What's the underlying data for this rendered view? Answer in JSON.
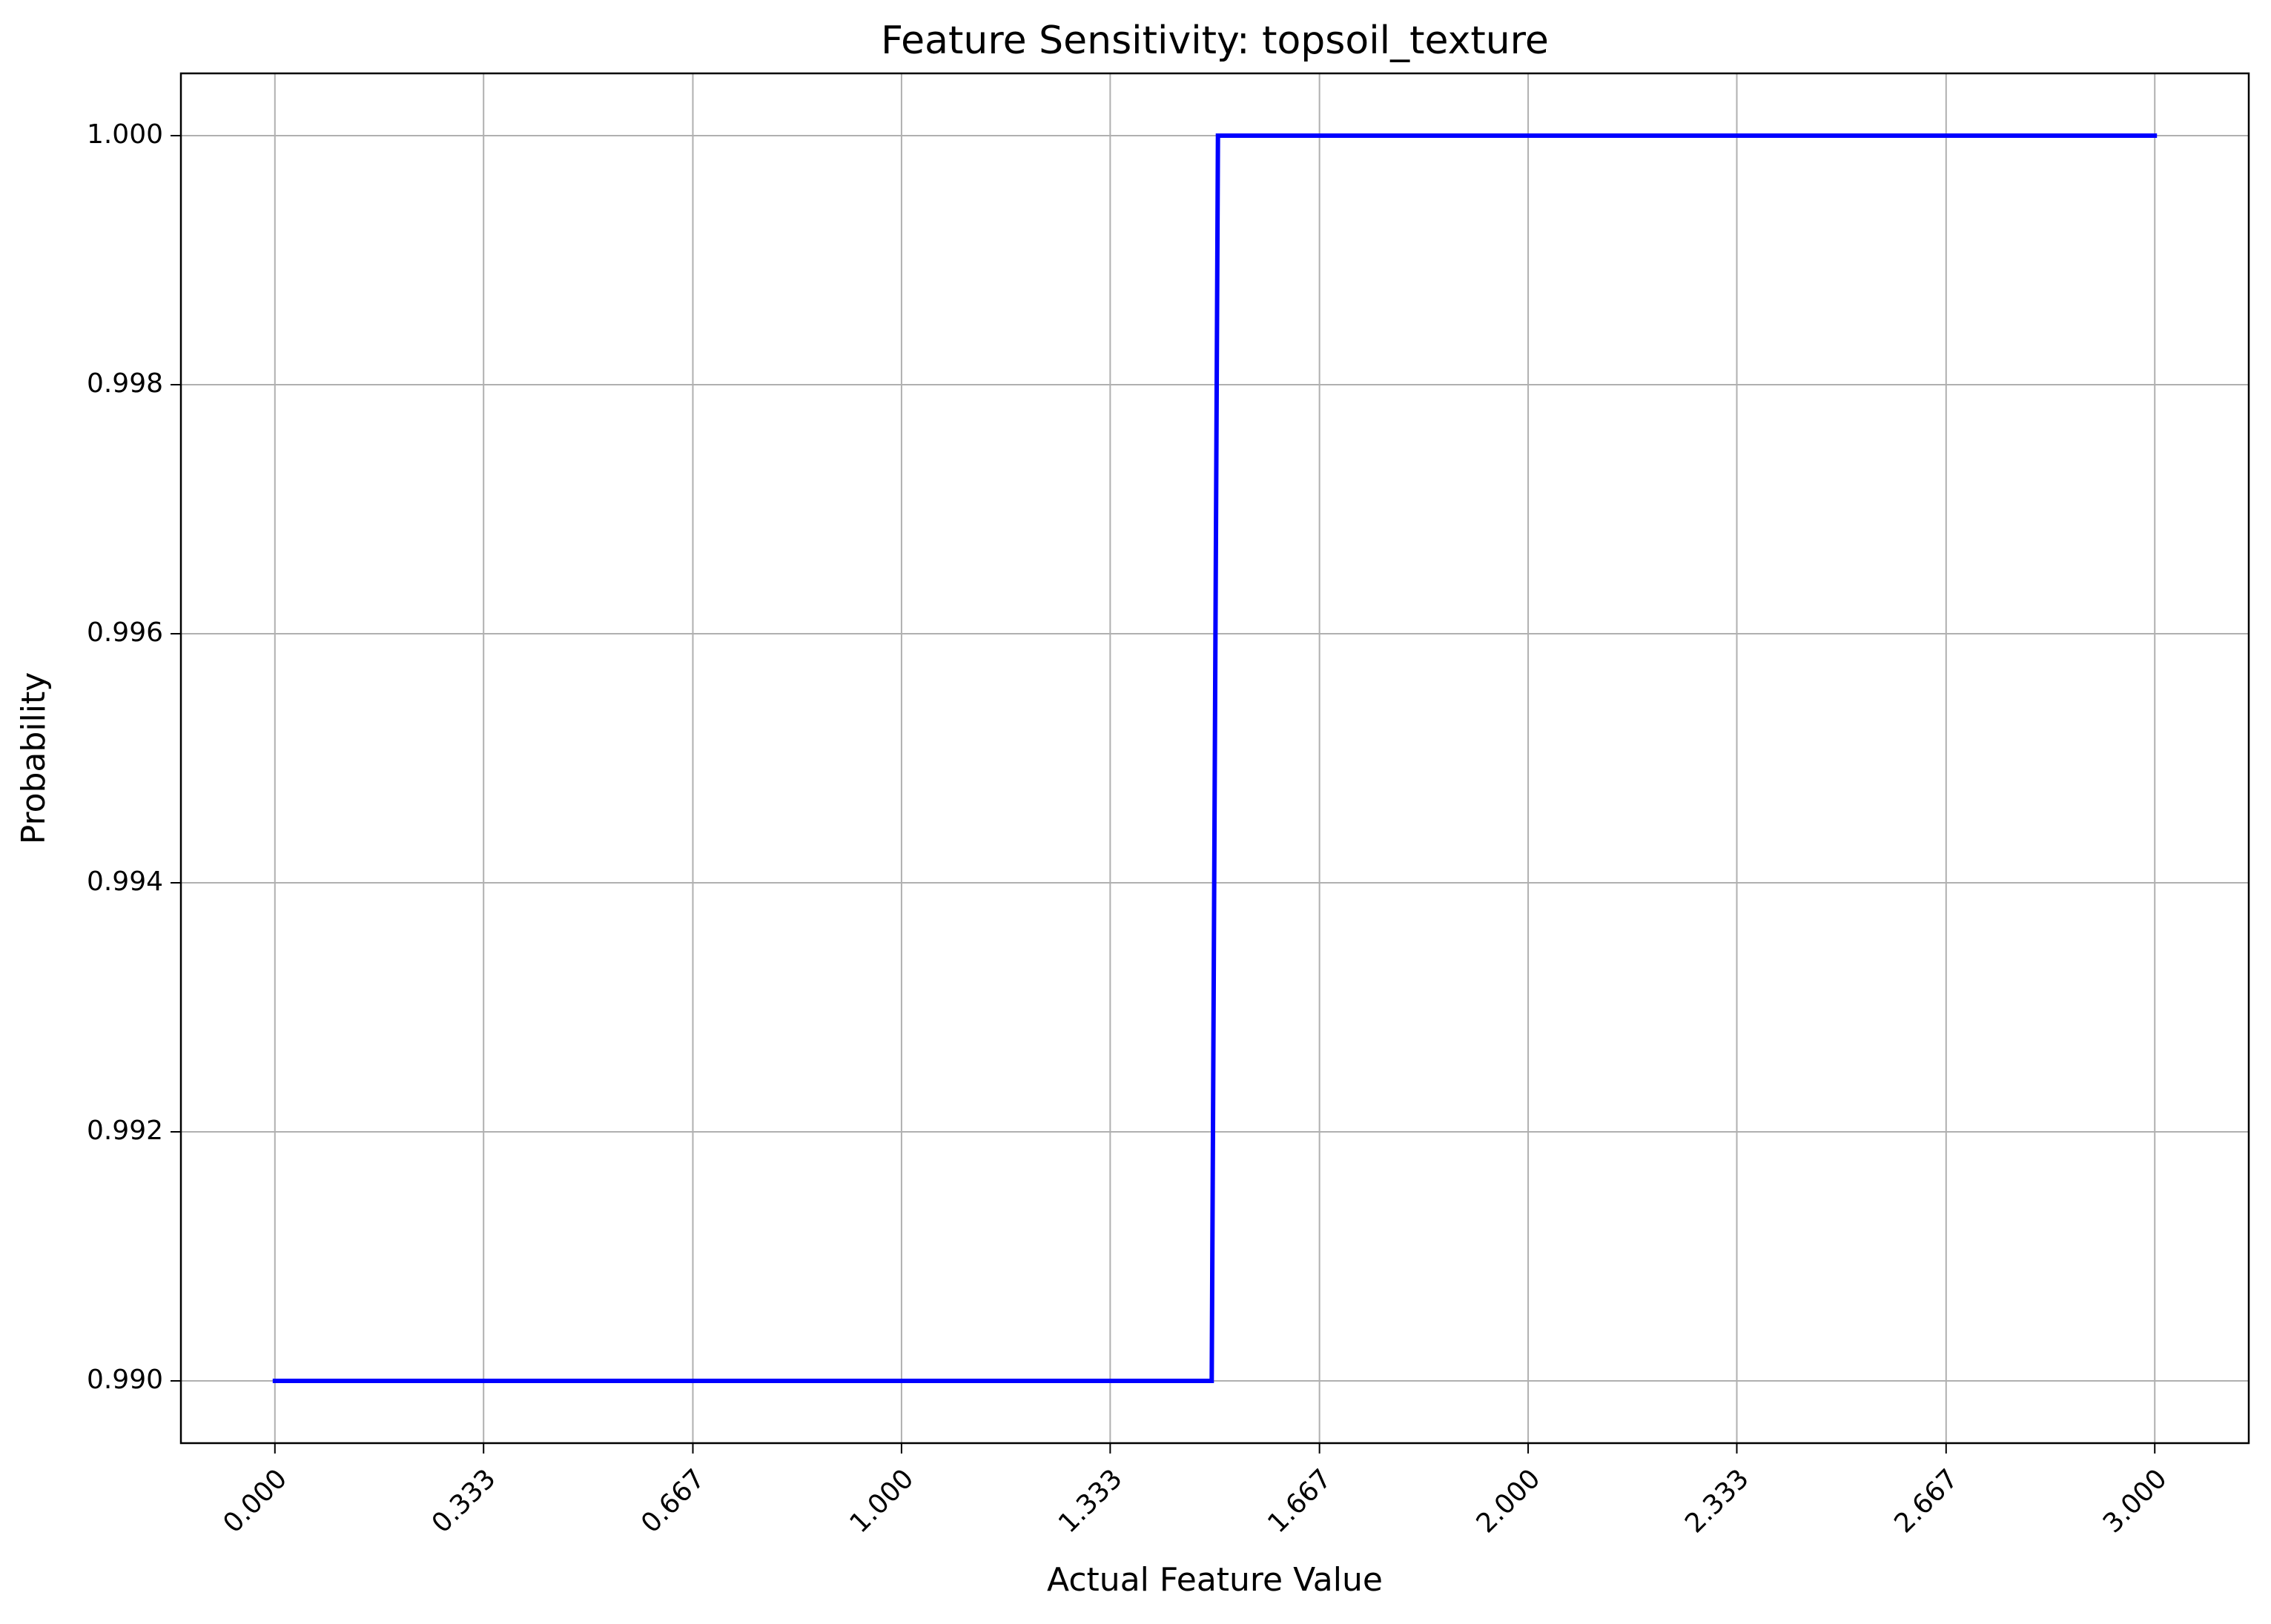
{
  "chart_data": {
    "type": "line",
    "title": "Feature Sensitivity: topsoil_texture",
    "xlabel": "Actual Feature Value",
    "ylabel": "Probability",
    "xlim": [
      -0.15,
      3.15
    ],
    "ylim": [
      0.9895,
      1.0005
    ],
    "x_ticks": [
      "0.000",
      "0.333",
      "0.667",
      "1.000",
      "1.333",
      "1.667",
      "2.000",
      "2.333",
      "2.667",
      "3.000"
    ],
    "y_ticks": [
      "0.990",
      "0.992",
      "0.994",
      "0.996",
      "0.998",
      "1.000"
    ],
    "grid": true,
    "series": [
      {
        "color": "#0000ff",
        "x": [
          0.0,
          1.495,
          1.505,
          3.0
        ],
        "y": [
          0.99,
          0.99,
          1.0,
          1.0
        ]
      }
    ]
  }
}
